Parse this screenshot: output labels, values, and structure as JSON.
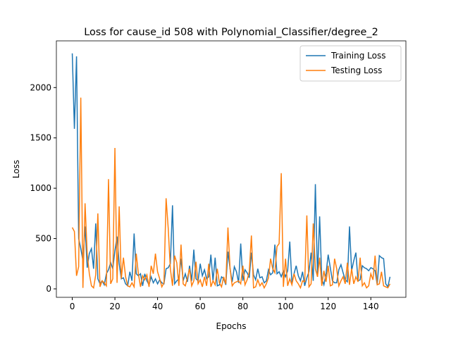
{
  "chart_data": {
    "type": "line",
    "title": "Loss for cause_id 508 with Polynomial_Classifier/degree_2",
    "xlabel": "Epochs",
    "ylabel": "Loss",
    "x": [
      0,
      1,
      2,
      3,
      4,
      5,
      6,
      7,
      8,
      9,
      10,
      11,
      12,
      13,
      14,
      15,
      16,
      17,
      18,
      19,
      20,
      21,
      22,
      23,
      24,
      25,
      26,
      27,
      28,
      29,
      30,
      31,
      32,
      33,
      34,
      35,
      36,
      37,
      38,
      39,
      40,
      41,
      42,
      43,
      44,
      45,
      46,
      47,
      48,
      49,
      50,
      51,
      52,
      53,
      54,
      55,
      56,
      57,
      58,
      59,
      60,
      61,
      62,
      63,
      64,
      65,
      66,
      67,
      68,
      69,
      70,
      71,
      72,
      73,
      74,
      75,
      76,
      77,
      78,
      79,
      80,
      81,
      82,
      83,
      84,
      85,
      86,
      87,
      88,
      89,
      90,
      91,
      92,
      93,
      94,
      95,
      96,
      97,
      98,
      99,
      100,
      101,
      102,
      103,
      104,
      105,
      106,
      107,
      108,
      109,
      110,
      111,
      112,
      113,
      114,
      115,
      116,
      117,
      118,
      119,
      120,
      121,
      122,
      123,
      124,
      125,
      126,
      127,
      128,
      129,
      130,
      131,
      132,
      133,
      134,
      135,
      136,
      137,
      138,
      139,
      140,
      141,
      142,
      143,
      144,
      145,
      146,
      147,
      148,
      149
    ],
    "series": [
      {
        "name": "Training Loss",
        "color": "#1f77b4",
        "values": [
          2340,
          1590,
          2310,
          500,
          400,
          280,
          620,
          210,
          350,
          400,
          200,
          650,
          100,
          50,
          80,
          40,
          150,
          190,
          260,
          200,
          380,
          520,
          250,
          100,
          110,
          50,
          30,
          170,
          80,
          550,
          150,
          130,
          150,
          30,
          150,
          80,
          40,
          120,
          60,
          100,
          50,
          90,
          60,
          50,
          200,
          210,
          250,
          830,
          50,
          80,
          100,
          300,
          80,
          150,
          70,
          230,
          80,
          390,
          100,
          80,
          250,
          130,
          190,
          100,
          120,
          340,
          80,
          310,
          30,
          40,
          120,
          100,
          40,
          370,
          200,
          70,
          220,
          170,
          60,
          450,
          80,
          190,
          160,
          110,
          360,
          140,
          90,
          200,
          110,
          120,
          60,
          80,
          190,
          140,
          160,
          440,
          150,
          170,
          120,
          180,
          120,
          180,
          470,
          60,
          150,
          230,
          130,
          80,
          170,
          30,
          110,
          170,
          360,
          80,
          1040,
          120,
          720,
          100,
          40,
          150,
          340,
          210,
          80,
          60,
          60,
          190,
          240,
          160,
          90,
          70,
          620,
          180,
          280,
          360,
          80,
          90,
          230,
          210,
          200,
          180,
          210,
          200,
          180,
          40,
          330,
          310,
          300,
          50,
          20,
          120
        ]
      },
      {
        "name": "Testing Loss",
        "color": "#ff7f0e",
        "values": [
          610,
          570,
          130,
          220,
          1900,
          10,
          850,
          350,
          150,
          30,
          10,
          140,
          750,
          20,
          80,
          60,
          30,
          1090,
          50,
          100,
          1400,
          60,
          820,
          100,
          310,
          120,
          30,
          20,
          60,
          20,
          350,
          150,
          20,
          130,
          90,
          140,
          20,
          230,
          150,
          350,
          170,
          100,
          20,
          60,
          900,
          600,
          200,
          30,
          330,
          260,
          30,
          440,
          50,
          30,
          110,
          200,
          30,
          80,
          270,
          50,
          90,
          20,
          120,
          30,
          250,
          20,
          80,
          40,
          200,
          60,
          20,
          120,
          50,
          610,
          200,
          30,
          60,
          70,
          80,
          50,
          230,
          40,
          90,
          170,
          530,
          10,
          20,
          90,
          30,
          60,
          10,
          50,
          110,
          300,
          200,
          160,
          420,
          450,
          1150,
          20,
          300,
          30,
          100,
          40,
          150,
          80,
          50,
          10,
          80,
          70,
          730,
          20,
          50,
          650,
          200,
          120,
          310,
          30,
          180,
          70,
          230,
          30,
          40,
          300,
          200,
          30,
          80,
          120,
          50,
          260,
          40,
          200,
          50,
          120,
          70,
          310,
          30,
          60,
          10,
          30,
          150,
          90,
          330,
          40,
          50,
          170,
          30,
          20,
          10,
          50
        ]
      }
    ],
    "xlim": [
      -7.45,
      156.45
    ],
    "ylim": [
      -84,
      2464
    ],
    "xticks": [
      0,
      20,
      40,
      60,
      80,
      100,
      120,
      140
    ],
    "yticks": [
      0,
      500,
      1000,
      1500,
      2000
    ],
    "legend": "upper right"
  }
}
